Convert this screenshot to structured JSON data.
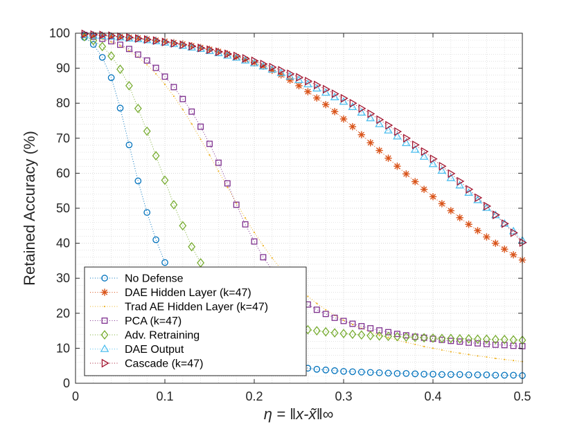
{
  "chart_data": {
    "type": "line",
    "ylabel": "Retained Accuracy (%)",
    "xlabel": "η = ‖x-x̃‖∞",
    "xlim": [
      0,
      0.5
    ],
    "ylim": [
      0,
      100
    ],
    "x_ticks": [
      0,
      0.1,
      0.2,
      0.3,
      0.4,
      0.5
    ],
    "x_tick_labels": [
      "0",
      "0.1",
      "0.2",
      "0.3",
      "0.4",
      "0.5"
    ],
    "y_ticks": [
      0,
      10,
      20,
      30,
      40,
      50,
      60,
      70,
      80,
      90,
      100
    ],
    "y_tick_labels": [
      "0",
      "10",
      "20",
      "30",
      "40",
      "50",
      "60",
      "70",
      "80",
      "90",
      "100"
    ],
    "grid": true,
    "minor_grid": true,
    "legend_position": "bottom-left",
    "x": [
      0.01,
      0.02,
      0.03,
      0.04,
      0.05,
      0.06,
      0.07,
      0.08,
      0.09,
      0.1,
      0.11,
      0.12,
      0.13,
      0.14,
      0.15,
      0.16,
      0.17,
      0.18,
      0.19,
      0.2,
      0.21,
      0.22,
      0.23,
      0.24,
      0.25,
      0.26,
      0.27,
      0.28,
      0.29,
      0.3,
      0.31,
      0.32,
      0.33,
      0.34,
      0.35,
      0.36,
      0.37,
      0.38,
      0.39,
      0.4,
      0.41,
      0.42,
      0.43,
      0.44,
      0.45,
      0.46,
      0.47,
      0.48,
      0.49,
      0.5
    ],
    "series": [
      {
        "name": "No Defense",
        "color": "#0072BD",
        "marker": "circle",
        "values": [
          98.8,
          96.8,
          93.1,
          87.3,
          78.6,
          68.1,
          57.8,
          48.8,
          41.0,
          34.5,
          29.0,
          24.4,
          20.4,
          17.1,
          14.3,
          12.2,
          10.6,
          9.3,
          8.2,
          7.3,
          6.6,
          5.9,
          5.4,
          5.0,
          4.6,
          4.3,
          4.0,
          3.8,
          3.6,
          3.4,
          3.3,
          3.2,
          3.1,
          3.0,
          2.9,
          2.8,
          2.8,
          2.7,
          2.6,
          2.6,
          2.5,
          2.5,
          2.5,
          2.4,
          2.4,
          2.4,
          2.3,
          2.3,
          2.3,
          2.2
        ]
      },
      {
        "name": "DAE Hidden Layer (k=47)",
        "color": "#D95319",
        "marker": "star",
        "values": [
          99.6,
          99.5,
          99.4,
          99.2,
          99.0,
          98.8,
          98.6,
          98.3,
          98.0,
          97.7,
          97.3,
          96.9,
          96.4,
          95.9,
          95.4,
          94.8,
          94.1,
          93.3,
          92.5,
          91.6,
          90.6,
          89.4,
          88.1,
          86.6,
          85.0,
          83.3,
          81.5,
          79.6,
          77.6,
          75.5,
          73.3,
          71.0,
          68.7,
          66.5,
          64.3,
          62.0,
          59.8,
          57.6,
          55.4,
          53.3,
          51.3,
          49.3,
          47.3,
          45.4,
          43.6,
          41.8,
          40.0,
          38.3,
          36.7,
          35.2
        ]
      },
      {
        "name": "Trad AE Hidden Layer (k=47)",
        "color": "#EDB120",
        "marker": "dot",
        "values": [
          99.3,
          98.9,
          98.3,
          97.5,
          96.4,
          95.0,
          93.2,
          91.0,
          88.4,
          85.4,
          82.0,
          78.2,
          74.1,
          69.7,
          65.2,
          60.6,
          56.0,
          51.5,
          47.2,
          43.1,
          39.3,
          35.8,
          32.6,
          29.7,
          27.1,
          24.8,
          22.8,
          21.0,
          19.4,
          18.0,
          16.8,
          15.7,
          14.7,
          13.8,
          13.0,
          12.3,
          11.7,
          11.1,
          10.5,
          10.0,
          9.5,
          9.0,
          8.6,
          8.2,
          7.8,
          7.5,
          7.1,
          6.8,
          6.5,
          6.2
        ]
      },
      {
        "name": "PCA (k=47)",
        "color": "#7E2F8E",
        "marker": "square",
        "values": [
          99.5,
          99.0,
          98.4,
          97.7,
          96.7,
          95.5,
          93.9,
          92.2,
          90.1,
          87.6,
          84.6,
          81.2,
          77.6,
          73.3,
          68.4,
          63.0,
          57.1,
          51.0,
          45.4,
          40.5,
          36.0,
          32.4,
          29.2,
          26.5,
          24.3,
          22.5,
          21.0,
          19.8,
          18.7,
          17.8,
          17.0,
          16.3,
          15.7,
          15.1,
          14.6,
          14.1,
          13.7,
          13.3,
          13.0,
          12.7,
          12.4,
          12.1,
          11.9,
          11.6,
          11.4,
          11.2,
          11.0,
          10.9,
          10.7,
          10.6
        ]
      },
      {
        "name": "Adv. Retraining",
        "color": "#77AC30",
        "marker": "diamond",
        "values": [
          99.0,
          97.9,
          96.2,
          93.5,
          89.7,
          85.0,
          78.5,
          72.0,
          65.0,
          58.0,
          51.0,
          45.0,
          39.0,
          34.4,
          30.3,
          27.0,
          24.5,
          22.4,
          20.7,
          19.4,
          18.3,
          17.4,
          16.8,
          16.2,
          15.8,
          15.3,
          15.0,
          14.7,
          14.4,
          14.2,
          14.0,
          13.8,
          13.6,
          13.5,
          13.4,
          13.3,
          13.2,
          13.1,
          13.0,
          12.9,
          12.8,
          12.8,
          12.7,
          12.7,
          12.6,
          12.6,
          12.5,
          12.5,
          12.4,
          12.3
        ]
      },
      {
        "name": "DAE Output",
        "color": "#4DBEEE",
        "marker": "triangle-up",
        "values": [
          99.5,
          99.3,
          99.2,
          99.0,
          98.8,
          98.5,
          98.3,
          98.0,
          97.7,
          97.3,
          96.9,
          96.4,
          95.9,
          95.5,
          94.9,
          94.3,
          93.6,
          93.0,
          92.2,
          91.4,
          90.5,
          89.6,
          88.6,
          87.6,
          86.6,
          85.4,
          84.2,
          83.0,
          81.7,
          80.4,
          78.9,
          77.3,
          75.7,
          74.0,
          72.2,
          70.5,
          68.6,
          66.7,
          64.7,
          62.6,
          60.7,
          58.6,
          56.5,
          54.4,
          52.3,
          50.1,
          48.0,
          45.6,
          43.4,
          40.8
        ]
      },
      {
        "name": "Cascade (k=47)",
        "color": "#A2142F",
        "marker": "triangle-right",
        "values": [
          99.8,
          99.6,
          99.5,
          99.3,
          99.0,
          98.8,
          98.5,
          98.2,
          97.9,
          97.5,
          97.1,
          96.7,
          96.3,
          95.8,
          95.3,
          94.7,
          94.1,
          93.5,
          92.8,
          92.1,
          91.2,
          90.3,
          89.4,
          88.4,
          87.4,
          86.3,
          85.2,
          84.0,
          82.7,
          81.4,
          80.0,
          78.5,
          77.0,
          75.3,
          73.7,
          71.9,
          70.0,
          68.1,
          66.2,
          64.1,
          62.0,
          59.9,
          57.7,
          55.4,
          53.0,
          50.6,
          48.1,
          45.6,
          43.0,
          40.2
        ]
      }
    ]
  }
}
